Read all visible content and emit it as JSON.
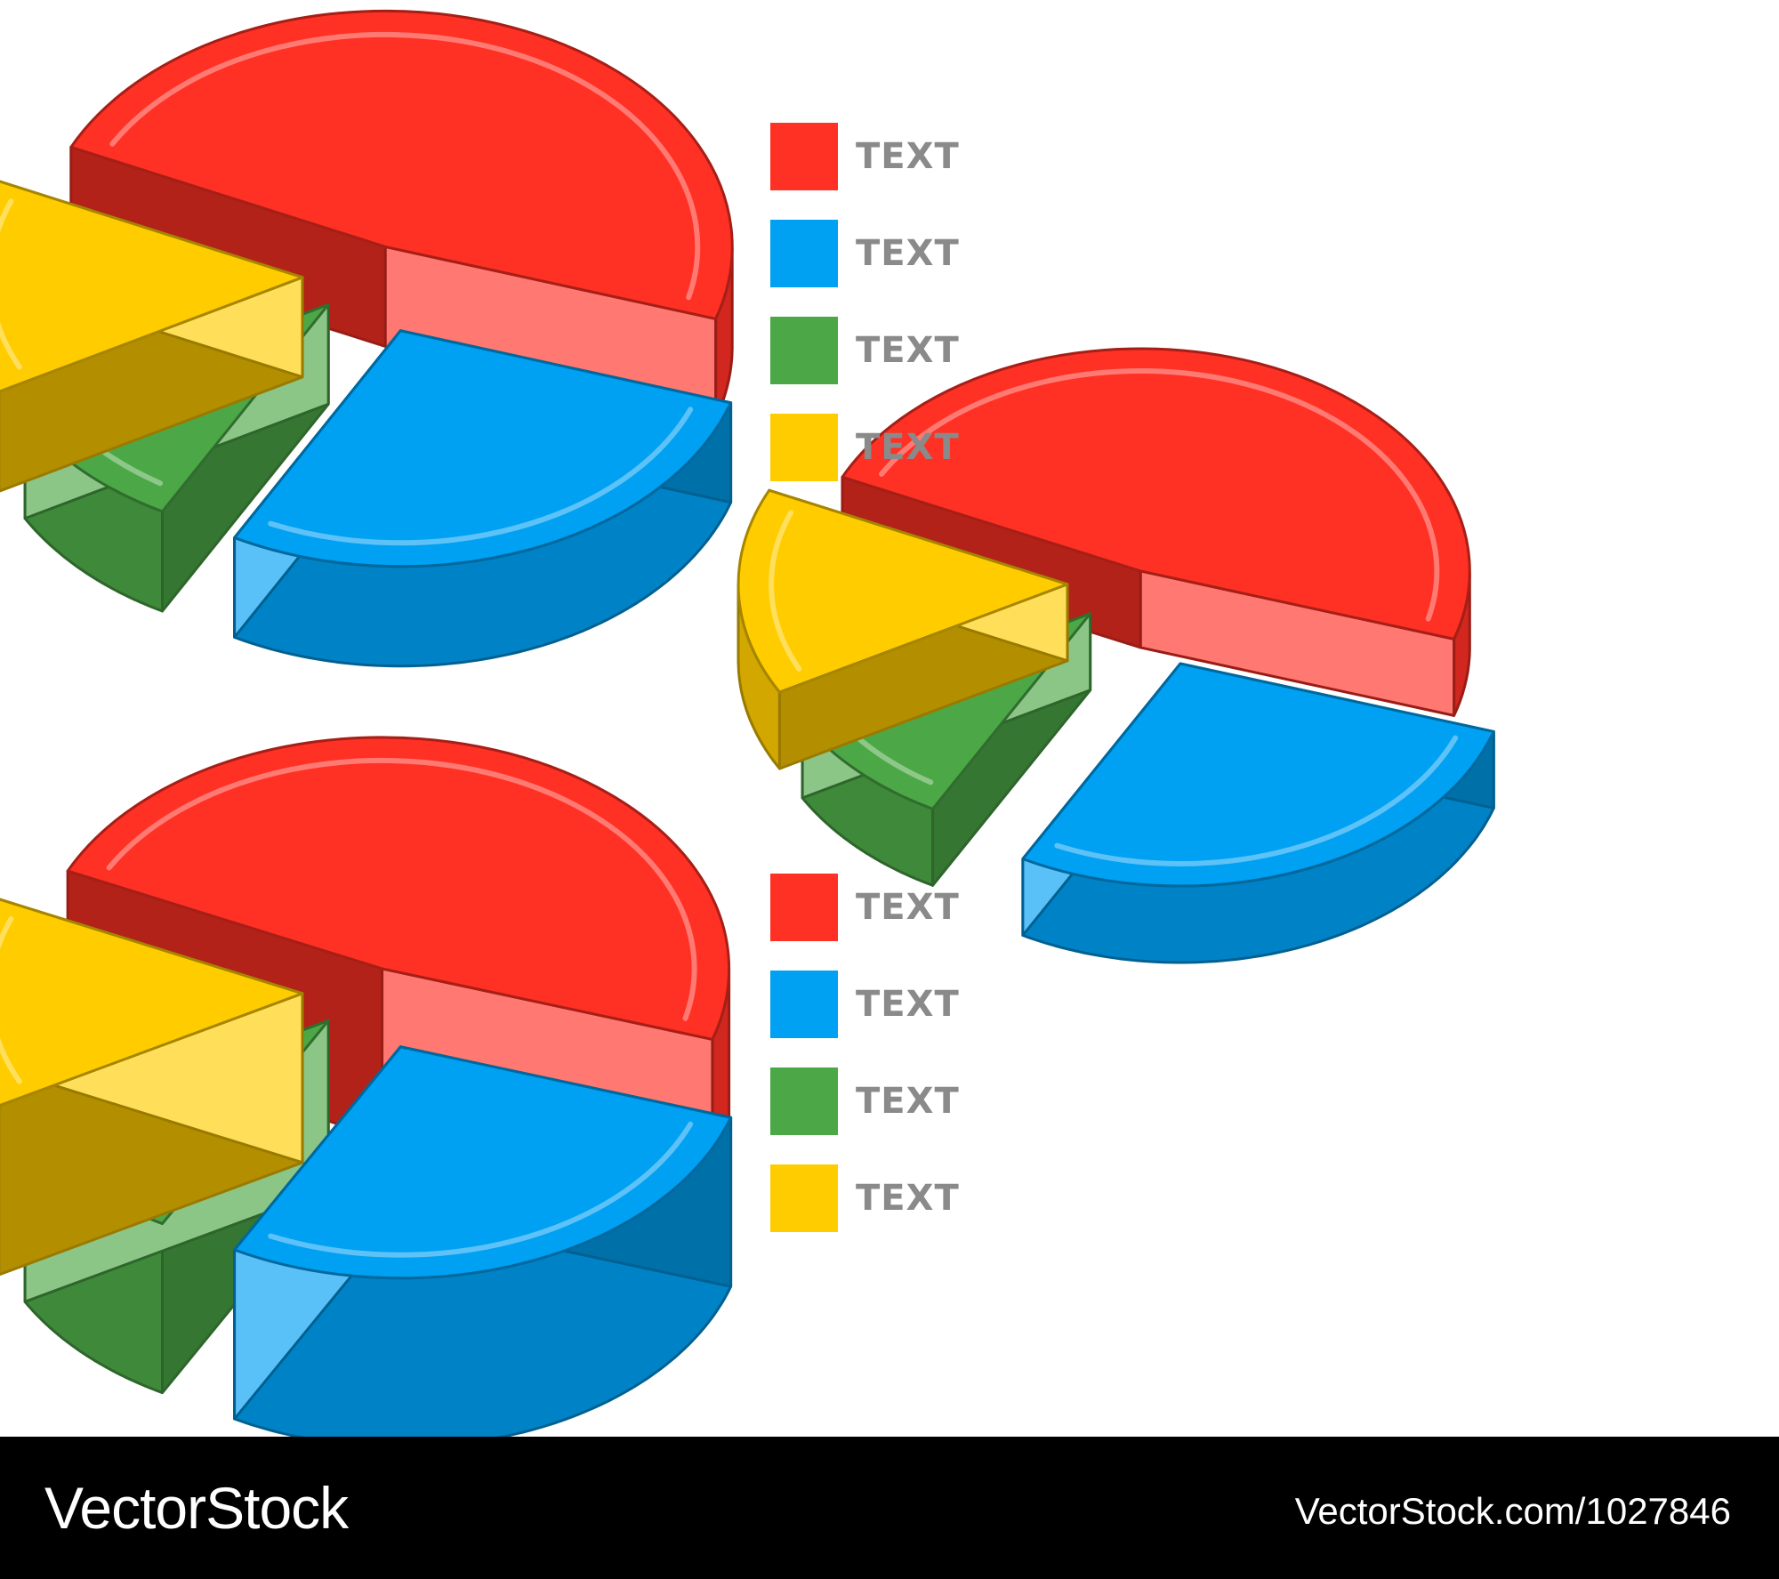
{
  "chart_data": [
    {
      "type": "pie",
      "categories": [
        "TEXT",
        "TEXT",
        "TEXT",
        "TEXT"
      ],
      "values": [
        48,
        28,
        9,
        15
      ],
      "colors": [
        "#ff3024",
        "#00a0f2",
        "#4ca847",
        "#ffcc00"
      ],
      "legend": "right"
    },
    {
      "type": "pie",
      "categories": [
        "TEXT",
        "TEXT",
        "TEXT",
        "TEXT"
      ],
      "values": [
        48,
        28,
        9,
        15
      ],
      "colors": [
        "#ff3024",
        "#00a0f2",
        "#4ca847",
        "#ffcc00"
      ],
      "legend": "none"
    },
    {
      "type": "pie",
      "categories": [
        "TEXT",
        "TEXT",
        "TEXT",
        "TEXT"
      ],
      "values": [
        48,
        28,
        9,
        15
      ],
      "colors": [
        "#ff3024",
        "#00a0f2",
        "#4ca847",
        "#ffcc00"
      ],
      "legend": "right"
    }
  ],
  "legend1": {
    "items": [
      {
        "label": "TEXT",
        "color": "#ff3024"
      },
      {
        "label": "TEXT",
        "color": "#00a0f2"
      },
      {
        "label": "TEXT",
        "color": "#4ca847"
      },
      {
        "label": "TEXT",
        "color": "#ffcc00"
      }
    ]
  },
  "legend2": {
    "items": [
      {
        "label": "TEXT",
        "color": "#ff3024"
      },
      {
        "label": "TEXT",
        "color": "#00a0f2"
      },
      {
        "label": "TEXT",
        "color": "#4ca847"
      },
      {
        "label": "TEXT",
        "color": "#ffcc00"
      }
    ]
  },
  "footer": {
    "brand": "VectorStock",
    "image_ref": "VectorStock.com/1027846"
  }
}
